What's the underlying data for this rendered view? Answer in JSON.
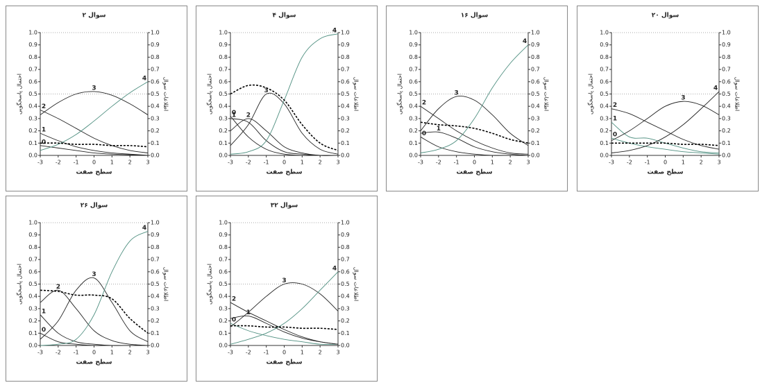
{
  "chart_data": [
    {
      "type": "line",
      "title": "سوال ۲",
      "x_label": "سطح صفت",
      "y_label": "احتمال پاسخگویی",
      "y2_label": "اطلاعات سوال",
      "x": [
        -3,
        -2,
        -1,
        0,
        1,
        2,
        3
      ],
      "xlim": [
        -3,
        3
      ],
      "xticks": [
        -3,
        -2,
        -1,
        0,
        1,
        2,
        3
      ],
      "ylim": [
        0,
        1
      ],
      "yticks": [
        {
          "value": 0,
          "label": "0.0"
        },
        0.1,
        0.2,
        0.3,
        0.4,
        0.5,
        0.6,
        0.7,
        0.8,
        0.9,
        {
          "value": 1,
          "label": "1.0"
        }
      ],
      "y2lim": [
        0,
        1
      ],
      "y2ticks": [
        {
          "value": 0,
          "label": "0.0"
        },
        0.1,
        0.2,
        0.3,
        0.4,
        0.5,
        0.6,
        0.7,
        0.8,
        0.9,
        {
          "value": 1,
          "label": "1.0"
        }
      ],
      "reference_lines": [
        0.5,
        1
      ],
      "series": [
        {
          "name": "0",
          "color": "#222222",
          "values": [
            0.08,
            0.06,
            0.04,
            0.02,
            0.01,
            0.005,
            0
          ]
        },
        {
          "name": "1",
          "color": "#222222",
          "values": [
            0.18,
            0.12,
            0.07,
            0.04,
            0.02,
            0.01,
            0
          ]
        },
        {
          "name": "2",
          "color": "#222222",
          "values": [
            0.37,
            0.3,
            0.22,
            0.14,
            0.08,
            0.04,
            0.02
          ]
        },
        {
          "name": "3",
          "color": "#222222",
          "values": [
            0.33,
            0.43,
            0.5,
            0.52,
            0.49,
            0.42,
            0.33
          ]
        },
        {
          "name": "4",
          "color": "#4f8f80",
          "values": [
            0.04,
            0.09,
            0.17,
            0.28,
            0.4,
            0.51,
            0.6
          ]
        },
        {
          "color": "#000000",
          "line_style": "dashed",
          "axis": "y2",
          "values": [
            0.1,
            0.1,
            0.09,
            0.09,
            0.08,
            0.08,
            0.07
          ]
        }
      ]
    },
    {
      "type": "line",
      "title": "سوال ۴",
      "x_label": "سطح صفت",
      "y_label": "احتمال پاسخگویی",
      "y2_label": "اطلاعات سوال",
      "x": [
        -3,
        -2,
        -1,
        0,
        1,
        2,
        3
      ],
      "xlim": [
        -3,
        3
      ],
      "xticks": [
        -3,
        -2,
        -1,
        0,
        1,
        2,
        3
      ],
      "ylim": [
        0,
        1
      ],
      "yticks": [
        {
          "value": 0,
          "label": "0.0"
        },
        0.1,
        0.2,
        0.3,
        0.4,
        0.5,
        0.6,
        0.7,
        0.8,
        0.9,
        {
          "value": 1,
          "label": "1.0"
        }
      ],
      "y2lim": [
        0,
        1
      ],
      "y2ticks": [
        {
          "value": 0,
          "label": "0.0"
        },
        0.1,
        0.2,
        0.3,
        0.4,
        0.5,
        0.6,
        0.7,
        0.8,
        0.9,
        {
          "value": 1,
          "label": "1.0"
        }
      ],
      "reference_lines": [
        0.5,
        1
      ],
      "series": [
        {
          "name": "0",
          "color": "#222222",
          "values": [
            0.32,
            0.15,
            0.05,
            0.01,
            0,
            0,
            0
          ]
        },
        {
          "name": "1",
          "color": "#222222",
          "values": [
            0.3,
            0.27,
            0.12,
            0.03,
            0.01,
            0,
            0
          ]
        },
        {
          "name": "2",
          "color": "#222222",
          "values": [
            0.2,
            0.3,
            0.2,
            0.07,
            0.02,
            0,
            0
          ]
        },
        {
          "name": "3",
          "color": "#222222",
          "values": [
            0.08,
            0.25,
            0.5,
            0.42,
            0.18,
            0.05,
            0.01
          ]
        },
        {
          "name": "4",
          "color": "#4f8f80",
          "values": [
            0.01,
            0.03,
            0.12,
            0.45,
            0.8,
            0.95,
            0.99
          ]
        },
        {
          "color": "#000000",
          "line_style": "dashed",
          "axis": "y2",
          "values": [
            0.5,
            0.57,
            0.55,
            0.45,
            0.25,
            0.1,
            0.04
          ]
        }
      ]
    },
    {
      "type": "line",
      "title": "سوال ۱۶",
      "x_label": "سطح صفت",
      "y_label": "احتمال پاسخگویی",
      "y2_label": "اطلاعات سوال",
      "x": [
        -3,
        -2,
        -1,
        0,
        1,
        2,
        3
      ],
      "xlim": [
        -3,
        3
      ],
      "xticks": [
        -3,
        -2,
        -1,
        0,
        1,
        2,
        3
      ],
      "ylim": [
        0,
        1
      ],
      "yticks": [
        {
          "value": 0,
          "label": "0.0"
        },
        0.1,
        0.2,
        0.3,
        0.4,
        0.5,
        0.6,
        0.7,
        0.8,
        0.9,
        {
          "value": 1,
          "label": "1.0"
        }
      ],
      "y2lim": [
        0,
        1
      ],
      "y2ticks": [
        {
          "value": 0,
          "label": "0.0"
        },
        0.1,
        0.2,
        0.3,
        0.4,
        0.5,
        0.6,
        0.7,
        0.8,
        0.9,
        {
          "value": 1,
          "label": "1.0"
        }
      ],
      "reference_lines": [
        0.5,
        1
      ],
      "series": [
        {
          "name": "0",
          "color": "#222222",
          "values": [
            0.15,
            0.07,
            0.03,
            0.01,
            0,
            0,
            0
          ]
        },
        {
          "name": "1",
          "color": "#222222",
          "values": [
            0.18,
            0.19,
            0.14,
            0.07,
            0.03,
            0.01,
            0
          ]
        },
        {
          "name": "2",
          "color": "#222222",
          "values": [
            0.4,
            0.3,
            0.2,
            0.12,
            0.06,
            0.02,
            0.01
          ]
        },
        {
          "name": "3",
          "color": "#222222",
          "values": [
            0.2,
            0.38,
            0.48,
            0.45,
            0.33,
            0.18,
            0.08
          ]
        },
        {
          "name": "4",
          "color": "#4f8f80",
          "values": [
            0.02,
            0.05,
            0.12,
            0.3,
            0.55,
            0.75,
            0.9
          ]
        },
        {
          "color": "#000000",
          "line_style": "dashed",
          "axis": "y2",
          "values": [
            0.27,
            0.25,
            0.24,
            0.22,
            0.18,
            0.13,
            0.1
          ]
        }
      ]
    },
    {
      "type": "line",
      "title": "سوال ۲۰",
      "x_label": "سطح صفت",
      "y_label": "احتمال پاسخگویی",
      "y2_label": "اطلاعات سوال",
      "x": [
        -3,
        -2,
        -1,
        0,
        1,
        2,
        3
      ],
      "xlim": [
        -3,
        3
      ],
      "xticks": [
        -3,
        -2,
        -1,
        0,
        1,
        2,
        3
      ],
      "ylim": [
        0,
        1
      ],
      "yticks": [
        {
          "value": 0,
          "label": "0.0"
        },
        0.1,
        0.2,
        0.3,
        0.4,
        0.5,
        0.6,
        0.7,
        0.8,
        0.9,
        {
          "value": 1,
          "label": "1.0"
        }
      ],
      "y2lim": [
        0,
        1
      ],
      "y2ticks": [
        {
          "value": 0,
          "label": "0.0"
        },
        0.1,
        0.2,
        0.3,
        0.4,
        0.5,
        0.6,
        0.7,
        0.8,
        0.9,
        {
          "value": 1,
          "label": "1.0"
        }
      ],
      "reference_lines": [
        0.5,
        1
      ],
      "series": [
        {
          "name": "0",
          "color": "#4f8f80",
          "values": [
            0.14,
            0.1,
            0.07,
            0.05,
            0.03,
            0.02,
            0.01
          ]
        },
        {
          "name": "1",
          "color": "#4f8f80",
          "values": [
            0.27,
            0.15,
            0.14,
            0.1,
            0.06,
            0.03,
            0.02
          ]
        },
        {
          "name": "2",
          "color": "#222222",
          "values": [
            0.38,
            0.34,
            0.27,
            0.2,
            0.13,
            0.08,
            0.05
          ]
        },
        {
          "name": "3",
          "color": "#222222",
          "values": [
            0.12,
            0.2,
            0.3,
            0.4,
            0.44,
            0.41,
            0.33
          ]
        },
        {
          "name": "4",
          "color": "#222222",
          "values": [
            0.02,
            0.04,
            0.08,
            0.15,
            0.25,
            0.38,
            0.52
          ]
        },
        {
          "color": "#000000",
          "line_style": "dashed",
          "axis": "y2",
          "values": [
            0.1,
            0.1,
            0.1,
            0.1,
            0.09,
            0.09,
            0.08
          ]
        }
      ]
    },
    {
      "type": "line",
      "title": "سوال ۲۶",
      "x_label": "سطح صفت",
      "y_label": "احتمال پاسخگویی",
      "y2_label": "اطلاعات سوال",
      "x": [
        -3,
        -2,
        -1,
        0,
        1,
        2,
        3
      ],
      "xlim": [
        -3,
        3
      ],
      "xticks": [
        -3,
        -2,
        -1,
        0,
        1,
        2,
        3
      ],
      "ylim": [
        0,
        1
      ],
      "yticks": [
        {
          "value": 0,
          "label": "0.0"
        },
        0.1,
        0.2,
        0.3,
        0.4,
        0.5,
        0.6,
        0.7,
        0.8,
        0.9,
        {
          "value": 1,
          "label": "1.0"
        }
      ],
      "y2lim": [
        0,
        1
      ],
      "y2ticks": [
        {
          "value": 0,
          "label": "0.0"
        },
        0.1,
        0.2,
        0.3,
        0.4,
        0.5,
        0.6,
        0.7,
        0.8,
        0.9,
        {
          "value": 1,
          "label": "1.0"
        }
      ],
      "reference_lines": [
        0.5,
        1
      ],
      "series": [
        {
          "name": "0",
          "color": "#222222",
          "values": [
            0.1,
            0.03,
            0.01,
            0,
            0,
            0,
            0
          ]
        },
        {
          "name": "1",
          "color": "#222222",
          "values": [
            0.25,
            0.1,
            0.03,
            0.01,
            0,
            0,
            0
          ]
        },
        {
          "name": "2",
          "color": "#222222",
          "values": [
            0.35,
            0.45,
            0.3,
            0.12,
            0.04,
            0.01,
            0
          ]
        },
        {
          "name": "3",
          "color": "#222222",
          "values": [
            0.05,
            0.2,
            0.45,
            0.55,
            0.35,
            0.12,
            0.03
          ]
        },
        {
          "name": "4",
          "color": "#4f8f80",
          "values": [
            0,
            0.01,
            0.05,
            0.25,
            0.6,
            0.85,
            0.93
          ]
        },
        {
          "color": "#000000",
          "line_style": "dashed",
          "axis": "y2",
          "values": [
            0.45,
            0.44,
            0.41,
            0.41,
            0.38,
            0.22,
            0.1
          ]
        }
      ]
    },
    {
      "type": "line",
      "title": "سوال ۳۲",
      "x_label": "سطح صفت",
      "y_label": "احتمال پاسخگویی",
      "y2_label": "اطلاعات سوال",
      "x": [
        -3,
        -2,
        -1,
        0,
        1,
        2,
        3
      ],
      "xlim": [
        -3,
        3
      ],
      "xticks": [
        -3,
        -2,
        -1,
        0,
        1,
        2,
        3
      ],
      "ylim": [
        0,
        1
      ],
      "yticks": [
        {
          "value": 0,
          "label": "0.0"
        },
        0.1,
        0.2,
        0.3,
        0.4,
        0.5,
        0.6,
        0.7,
        0.8,
        0.9,
        {
          "value": 1,
          "label": "1.0"
        }
      ],
      "y2lim": [
        0,
        1
      ],
      "y2ticks": [
        {
          "value": 0,
          "label": "0.0"
        },
        0.1,
        0.2,
        0.3,
        0.4,
        0.5,
        0.6,
        0.7,
        0.8,
        0.9,
        {
          "value": 1,
          "label": "1.0"
        }
      ],
      "reference_lines": [
        0.5,
        1
      ],
      "series": [
        {
          "name": "0",
          "color": "#4f8f80",
          "values": [
            0.18,
            0.12,
            0.08,
            0.05,
            0.03,
            0.01,
            0.01
          ]
        },
        {
          "name": "1",
          "color": "#222222",
          "values": [
            0.22,
            0.24,
            0.18,
            0.11,
            0.06,
            0.03,
            0.01
          ]
        },
        {
          "name": "2",
          "color": "#222222",
          "values": [
            0.35,
            0.27,
            0.2,
            0.13,
            0.07,
            0.03,
            0.01
          ]
        },
        {
          "name": "3",
          "color": "#222222",
          "values": [
            0.15,
            0.27,
            0.4,
            0.5,
            0.5,
            0.42,
            0.28
          ]
        },
        {
          "name": "4",
          "color": "#4f8f80",
          "values": [
            0.01,
            0.05,
            0.1,
            0.18,
            0.3,
            0.45,
            0.6
          ]
        },
        {
          "color": "#000000",
          "line_style": "dashed",
          "axis": "y2",
          "values": [
            0.16,
            0.16,
            0.15,
            0.15,
            0.14,
            0.14,
            0.13
          ]
        }
      ]
    }
  ]
}
